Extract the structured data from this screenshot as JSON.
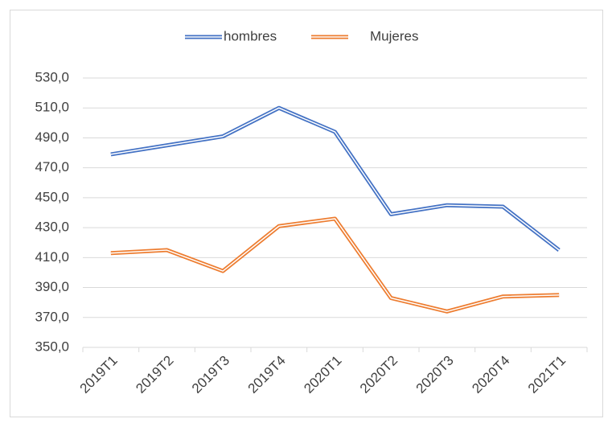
{
  "chart_data": {
    "type": "line",
    "categories": [
      "2019T1",
      "2019T2",
      "2019T3",
      "2019T4",
      "2020T1",
      "2020T2",
      "2020T3",
      "2020T4",
      "2021T1"
    ],
    "series": [
      {
        "name": "hombres",
        "color": "#4472c4",
        "values": [
          479,
          485,
          491,
          510,
          494,
          439,
          445,
          444,
          415
        ]
      },
      {
        "name": "Mujeres",
        "color": "#ed7d31",
        "values": [
          413,
          415,
          401,
          431,
          436,
          383,
          374,
          384,
          385
        ]
      }
    ],
    "ylim": [
      350,
      530
    ],
    "yticks": [
      {
        "value": 350,
        "label": "350,0"
      },
      {
        "value": 370,
        "label": "370,0"
      },
      {
        "value": 390,
        "label": "390,0"
      },
      {
        "value": 410,
        "label": "410,0"
      },
      {
        "value": 430,
        "label": "430,0"
      },
      {
        "value": 450,
        "label": "450,0"
      },
      {
        "value": 470,
        "label": "470,0"
      },
      {
        "value": 490,
        "label": "490,0"
      },
      {
        "value": 510,
        "label": "510,0"
      },
      {
        "value": 530,
        "label": "530,0"
      }
    ],
    "grid": true,
    "legend": "top",
    "line_style": "double"
  }
}
